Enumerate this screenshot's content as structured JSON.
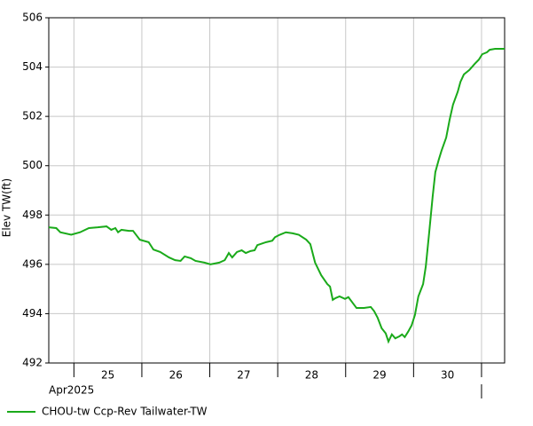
{
  "chart_data": {
    "type": "line",
    "y_label": "Elev TW(ft)",
    "x_group_label": "Apr2025",
    "xlim": [
      24.63,
      31.34
    ],
    "xticks": [
      {
        "value": 25.5,
        "label": "25"
      },
      {
        "value": 26.5,
        "label": "26"
      },
      {
        "value": 27.5,
        "label": "27"
      },
      {
        "value": 28.5,
        "label": "28"
      },
      {
        "value": 29.5,
        "label": "29"
      },
      {
        "value": 30.5,
        "label": "30"
      }
    ],
    "xgrid": [
      25,
      26,
      27,
      28,
      29,
      30,
      31
    ],
    "ylim": [
      492,
      506
    ],
    "yticks": [
      492,
      494,
      496,
      498,
      500,
      502,
      504,
      506
    ],
    "grid": true,
    "legend": "bottom-left",
    "x": [
      24.63,
      24.74,
      24.8,
      24.96,
      25.09,
      25.22,
      25.35,
      25.48,
      25.55,
      25.61,
      25.65,
      25.7,
      25.81,
      25.87,
      25.97,
      26.1,
      26.17,
      26.27,
      26.4,
      26.49,
      26.57,
      26.63,
      26.72,
      26.79,
      26.92,
      27.01,
      27.14,
      27.22,
      27.28,
      27.33,
      27.4,
      27.47,
      27.53,
      27.6,
      27.66,
      27.7,
      27.83,
      27.92,
      27.96,
      28.03,
      28.12,
      28.22,
      28.31,
      28.42,
      28.48,
      28.55,
      28.64,
      28.73,
      28.77,
      28.81,
      28.85,
      28.91,
      28.99,
      29.04,
      29.1,
      29.16,
      29.27,
      29.37,
      29.42,
      29.47,
      29.53,
      29.59,
      29.63,
      29.68,
      29.73,
      29.79,
      29.83,
      29.87,
      29.92,
      29.97,
      30.02,
      30.07,
      30.14,
      30.18,
      30.23,
      30.28,
      30.32,
      30.37,
      30.41,
      30.48,
      30.53,
      30.58,
      30.65,
      30.69,
      30.74,
      30.82,
      30.9,
      30.96,
      31.01,
      31.08,
      31.12,
      31.2,
      31.26,
      31.34
    ],
    "series": [
      {
        "name": "CHOU-tw Ccp-Rev Tailwater-TW",
        "color": "#1aaa1a",
        "values": [
          497.5,
          497.47,
          497.3,
          497.2,
          497.3,
          497.47,
          497.5,
          497.54,
          497.4,
          497.47,
          497.3,
          497.4,
          497.36,
          497.36,
          497.0,
          496.9,
          496.6,
          496.5,
          496.28,
          496.17,
          496.14,
          496.32,
          496.25,
          496.14,
          496.07,
          496.0,
          496.07,
          496.17,
          496.46,
          496.28,
          496.5,
          496.57,
          496.46,
          496.54,
          496.57,
          496.78,
          496.9,
          496.96,
          497.1,
          497.2,
          497.3,
          497.26,
          497.2,
          497.0,
          496.82,
          496.07,
          495.56,
          495.2,
          495.1,
          494.56,
          494.63,
          494.7,
          494.6,
          494.67,
          494.45,
          494.23,
          494.23,
          494.27,
          494.1,
          493.84,
          493.41,
          493.2,
          492.87,
          493.16,
          493.0,
          493.08,
          493.16,
          493.05,
          493.27,
          493.52,
          493.95,
          494.7,
          495.2,
          495.92,
          497.3,
          498.73,
          499.74,
          500.24,
          500.6,
          501.14,
          501.86,
          502.47,
          503.0,
          503.4,
          503.7,
          503.88,
          504.13,
          504.3,
          504.52,
          504.6,
          504.7,
          504.74,
          504.74,
          504.74
        ]
      }
    ]
  }
}
